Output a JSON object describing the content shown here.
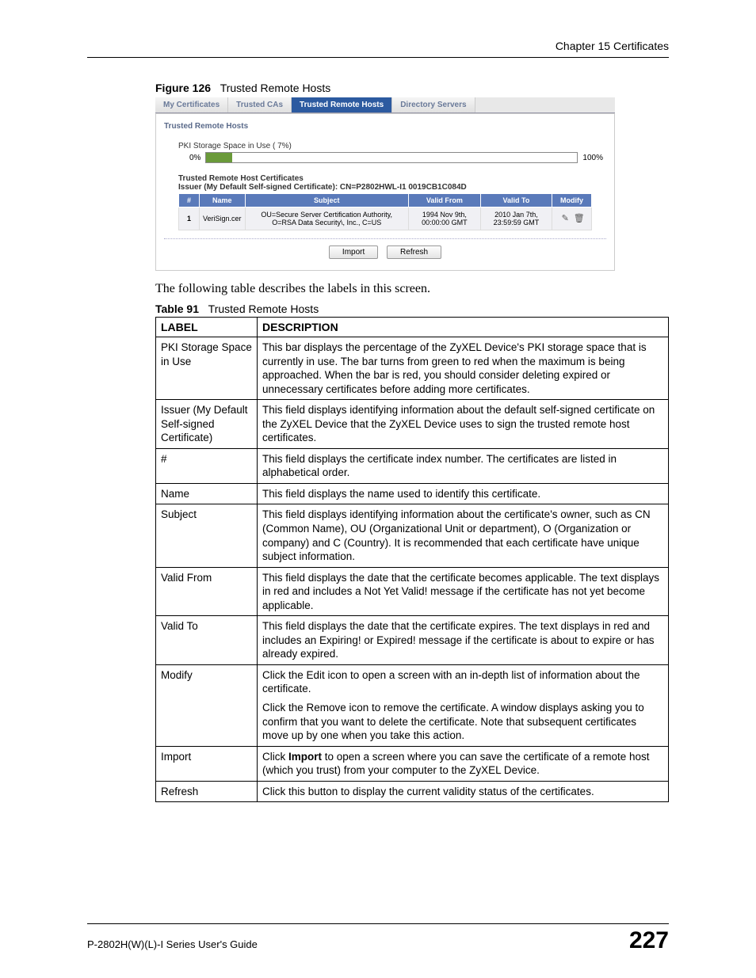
{
  "header": {
    "chapter": "Chapter 15 Certificates"
  },
  "figure": {
    "label": "Figure 126",
    "title": "Trusted Remote Hosts"
  },
  "screenshot": {
    "tabs": [
      "My Certificates",
      "Trusted CAs",
      "Trusted Remote Hosts",
      "Directory Servers"
    ],
    "active_tab_index": 2,
    "panel_title": "Trusted Remote Hosts",
    "storage_label": "PKI Storage Space in Use ( 7%)",
    "bar_left": "0%",
    "bar_right": "100%",
    "bar_fill_pct": 7,
    "bar_fill_color": "#6a9a3a",
    "cert_section_title": "Trusted Remote Host Certificates",
    "issuer_line": "Issuer (My Default Self-signed Certificate): CN=P2802HWL-I1 0019CB1C084D",
    "cert_columns": [
      "#",
      "Name",
      "Subject",
      "Valid From",
      "Valid To",
      "Modify"
    ],
    "cert_row": {
      "index": "1",
      "name": "VeriSign.cer",
      "subject": "OU=Secure Server Certification Authority, O=RSA Data Security\\, Inc., C=US",
      "valid_from": "1994 Nov 9th, 00:00:00 GMT",
      "valid_to": "2010 Jan 7th, 23:59:59 GMT"
    },
    "buttons": {
      "import": "Import",
      "refresh": "Refresh"
    },
    "header_bg": "#5a7aba"
  },
  "intro_text": "The following table describes the labels in this screen.",
  "table_caption": {
    "label": "Table 91",
    "title": "Trusted Remote Hosts"
  },
  "desc_table": {
    "headers": [
      "LABEL",
      "DESCRIPTION"
    ],
    "rows": [
      {
        "label": "PKI Storage Space in Use",
        "desc": [
          "This bar displays the percentage of the ZyXEL Device's PKI storage space that is currently in use. The bar turns from green to red when the maximum is being approached. When the bar is red, you should consider deleting expired or unnecessary certificates before adding more certificates."
        ]
      },
      {
        "label": "Issuer (My Default Self-signed Certificate)",
        "desc": [
          "This field displays identifying information about the default self-signed certificate on the ZyXEL Device that the ZyXEL Device uses to sign the trusted remote host certificates."
        ]
      },
      {
        "label": "#",
        "desc": [
          "This field displays the certificate index number. The certificates are listed in alphabetical order."
        ]
      },
      {
        "label": "Name",
        "desc": [
          "This field displays the name used to identify this certificate."
        ]
      },
      {
        "label": "Subject",
        "desc": [
          "This field displays identifying information about the certificate's owner, such as CN (Common Name), OU (Organizational Unit or department), O (Organization or company) and C (Country). It is recommended that each certificate have unique subject information."
        ]
      },
      {
        "label": "Valid From",
        "desc": [
          "This field displays the date that the certificate becomes applicable. The text displays in red and includes a Not Yet Valid! message if the certificate has not yet become applicable."
        ]
      },
      {
        "label": "Valid To",
        "desc": [
          "This field displays the date that the certificate expires. The text displays in red and includes an Expiring! or Expired! message if the certificate is about to expire or has already expired."
        ]
      },
      {
        "label": "Modify",
        "desc": [
          "Click the Edit icon to open a screen with an in-depth list of information about the certificate.",
          "Click the Remove icon to remove the certificate. A window displays asking you to confirm that you want to delete the certificate. Note that subsequent certificates move up by one when you take this action."
        ]
      },
      {
        "label": "Import",
        "desc_html": "Click <b>Import</b> to open a screen where you can save the certificate of a remote host (which you trust) from your computer to the ZyXEL Device."
      },
      {
        "label": "Refresh",
        "desc": [
          "Click this button to display the current validity status of the certificates."
        ]
      }
    ]
  },
  "footer": {
    "guide": "P-2802H(W)(L)-I Series User's Guide",
    "page": "227"
  }
}
